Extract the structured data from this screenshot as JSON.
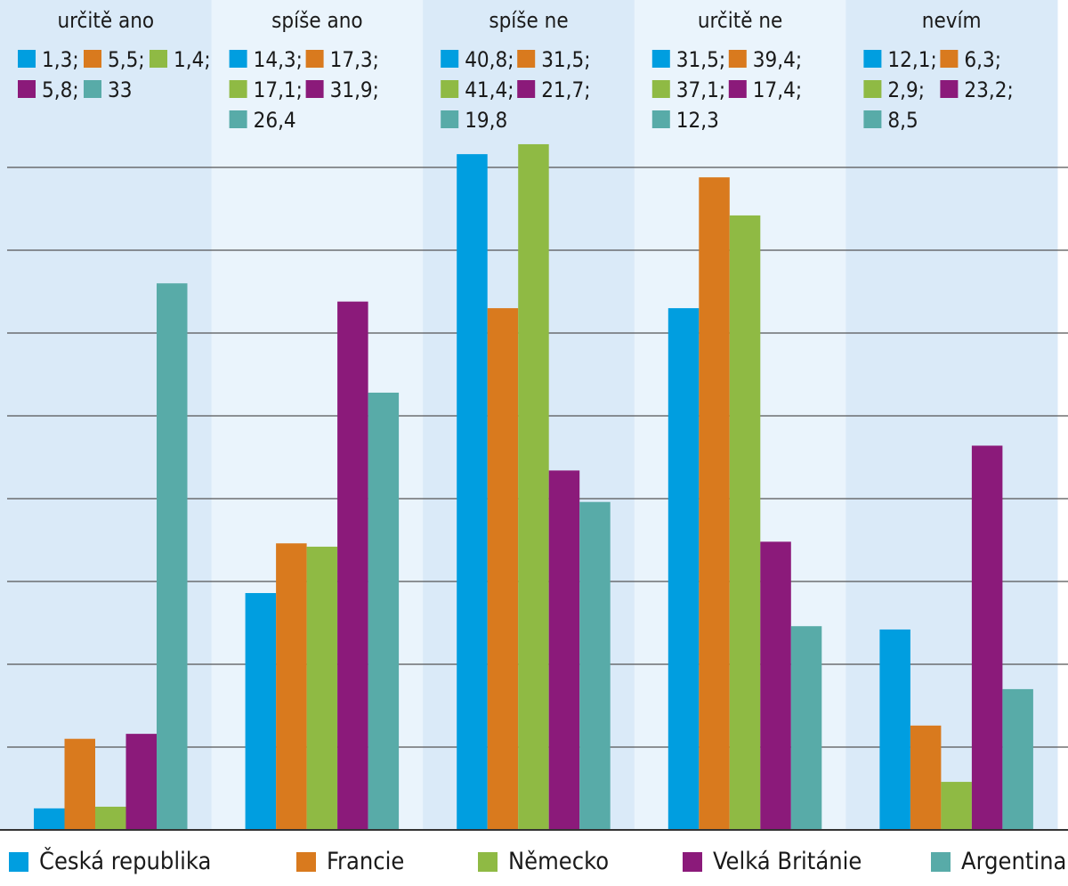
{
  "chart_data": {
    "type": "bar",
    "title": "",
    "xlabel": "",
    "ylabel": "",
    "ylim": [
      0,
      42
    ],
    "grid": true,
    "categories": [
      "určitě ano",
      "spíše ano",
      "spíše ne",
      "určitě ne",
      "nevím"
    ],
    "series": [
      {
        "name": "Česká republika",
        "color": "#009ee0",
        "values": [
          1.3,
          14.3,
          40.8,
          31.5,
          12.1
        ]
      },
      {
        "name": "Francie",
        "color": "#d97a1e",
        "values": [
          5.5,
          17.3,
          31.5,
          39.4,
          6.3
        ]
      },
      {
        "name": "Německo",
        "color": "#8fba44",
        "values": [
          1.4,
          17.1,
          41.4,
          37.1,
          2.9
        ]
      },
      {
        "name": "Velká Británie",
        "color": "#8b1a7a",
        "values": [
          5.8,
          31.9,
          21.7,
          17.4,
          23.2
        ]
      },
      {
        "name": "Argentina",
        "color": "#58aba8",
        "values": [
          33,
          26.4,
          19.8,
          12.3,
          8.5
        ]
      }
    ],
    "value_labels": [
      [
        "1,3;",
        "5,5;",
        "1,4;",
        "5,8;",
        "33"
      ],
      [
        "14,3;",
        "17,3;",
        "17,1;",
        "31,9;",
        "26,4"
      ],
      [
        "40,8;",
        "31,5;",
        "41,4;",
        "21,7;",
        "19,8"
      ],
      [
        "31,5;",
        "39,4;",
        "37,1;",
        "17,4;",
        "12,3"
      ],
      [
        "12,1;",
        "6,3;",
        "2,9;",
        "23,2;",
        "8,5"
      ]
    ],
    "legend_position": "bottom",
    "panel_colors": [
      "#daeaf8",
      "#eaf4fc"
    ],
    "grid_color": "#555555"
  }
}
